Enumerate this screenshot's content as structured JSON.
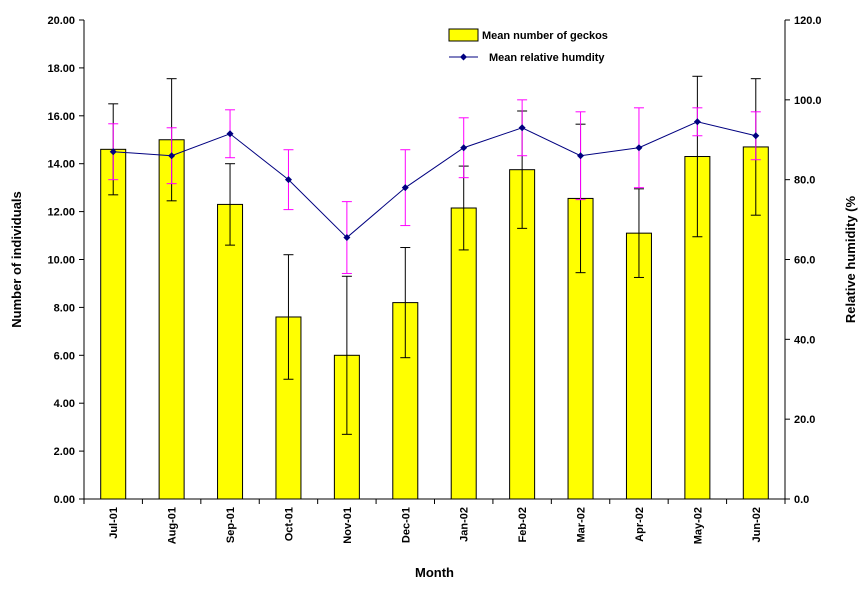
{
  "chart_data": {
    "type": "bar",
    "xlabel": "Month",
    "ylabel": "Number of individuals",
    "y2label": "Relative humidity (%",
    "categories": [
      "Jul-01",
      "Aug-01",
      "Sep-01",
      "Oct-01",
      "Nov-01",
      "Dec-01",
      "Jan-02",
      "Feb-02",
      "Mar-02",
      "Apr-02",
      "May-02",
      "Jun-02"
    ],
    "ylim": [
      0,
      20
    ],
    "y_ticks": [
      "0.00",
      "2.00",
      "4.00",
      "6.00",
      "8.00",
      "10.00",
      "12.00",
      "14.00",
      "16.00",
      "18.00",
      "20.00"
    ],
    "y2lim": [
      0,
      120
    ],
    "y2_ticks": [
      "0.0",
      "20.0",
      "40.0",
      "60.0",
      "80.0",
      "100.0",
      "120.0"
    ],
    "grid": false,
    "legend_position": "top-right",
    "series": [
      {
        "name": "Mean number of geckos",
        "type": "bar",
        "axis": "left",
        "color": "#FFFF00",
        "values": [
          14.6,
          15.0,
          12.3,
          7.6,
          6.0,
          8.2,
          12.15,
          13.75,
          12.55,
          11.1,
          14.3,
          14.7
        ],
        "error": [
          1.9,
          2.55,
          1.7,
          2.6,
          3.3,
          2.3,
          1.75,
          2.45,
          3.1,
          1.85,
          3.35,
          2.85
        ]
      },
      {
        "name": "Mean relative humdity",
        "type": "line",
        "axis": "right",
        "color": "#000080",
        "error_color": "#FF00FF",
        "values": [
          87.0,
          86.0,
          91.5,
          80.0,
          65.5,
          78.0,
          88.0,
          93.0,
          86.0,
          88.0,
          94.5,
          91.0
        ],
        "error": [
          7.0,
          7.0,
          6.0,
          7.5,
          9.0,
          9.5,
          7.5,
          7.0,
          11.0,
          10.0,
          3.5,
          6.0
        ]
      }
    ]
  }
}
